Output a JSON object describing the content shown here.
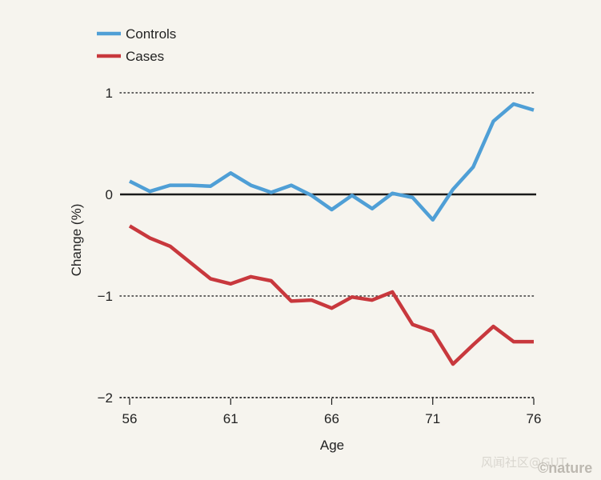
{
  "chart_data": {
    "type": "line",
    "title": "",
    "xlabel": "Age",
    "ylabel": "Change (%)",
    "x": [
      56,
      57,
      58,
      59,
      60,
      61,
      62,
      63,
      64,
      65,
      66,
      67,
      68,
      69,
      70,
      71,
      72,
      73,
      74,
      75,
      76
    ],
    "xlim": [
      56,
      76
    ],
    "ylim": [
      -2,
      1
    ],
    "xticks": [
      56,
      61,
      66,
      71,
      76
    ],
    "xtick_labels": [
      "56",
      "61",
      "66",
      "71",
      "76"
    ],
    "yticks": [
      1,
      0,
      -1,
      -2
    ],
    "ytick_labels": [
      "1",
      "0",
      "−1",
      "−2"
    ],
    "zero_line": 0,
    "legend_position": "top-left",
    "series": [
      {
        "name": "Controls",
        "color": "#4f9fd6",
        "values": [
          0.13,
          0.03,
          0.09,
          0.09,
          0.08,
          0.21,
          0.09,
          0.02,
          0.09,
          -0.01,
          -0.15,
          -0.01,
          -0.14,
          0.01,
          -0.03,
          -0.25,
          0.05,
          0.27,
          0.72,
          0.89,
          0.83
        ]
      },
      {
        "name": "Cases",
        "color": "#c8383d",
        "values": [
          -0.31,
          -0.43,
          -0.51,
          -0.67,
          -0.83,
          -0.88,
          -0.81,
          -0.85,
          -1.05,
          -1.04,
          -1.12,
          -1.01,
          -1.04,
          -0.96,
          -1.28,
          -1.35,
          -1.67,
          -1.48,
          -1.3,
          -1.45,
          -1.45
        ]
      }
    ]
  },
  "branding": {
    "watermark": "风闻社区@GUT",
    "publisher": "©nature"
  }
}
